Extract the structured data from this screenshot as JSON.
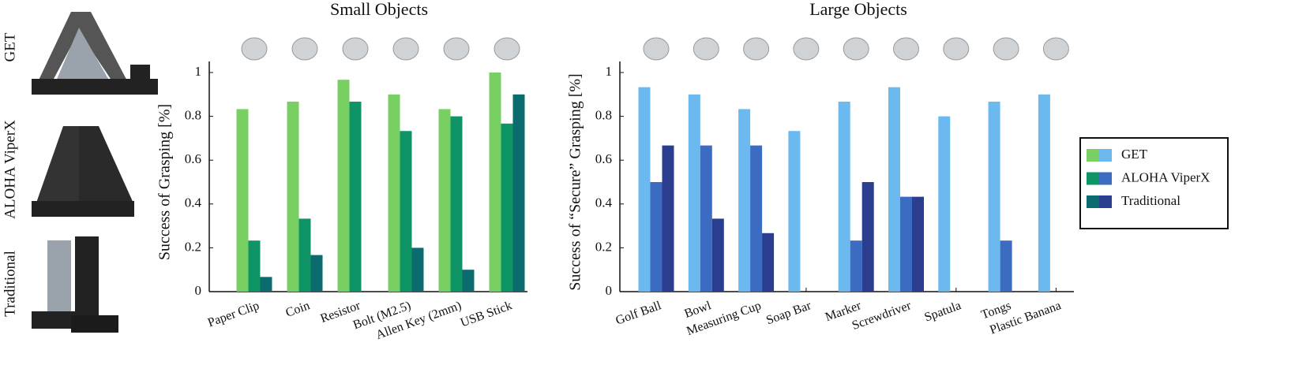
{
  "gripper_labels": [
    "GET",
    "ALOHA ViperX",
    "Traditional"
  ],
  "chart_data": [
    {
      "type": "bar",
      "title": "Small Objects",
      "ylabel": "Success of Grasping [%]",
      "categories": [
        "Paper Clip",
        "Coin",
        "Resistor",
        "Bolt (M2.5)",
        "Allen Key (2mm)",
        "USB Stick"
      ],
      "series": [
        {
          "name": "GET",
          "color": "#79d062",
          "values": [
            0.833,
            0.867,
            0.967,
            0.9,
            0.833,
            1.0
          ]
        },
        {
          "name": "ALOHA ViperX",
          "color": "#0e9465",
          "values": [
            0.233,
            0.333,
            0.867,
            0.733,
            0.8,
            0.767
          ]
        },
        {
          "name": "Traditional",
          "color": "#0b6b6f",
          "values": [
            0.067,
            0.167,
            0,
            0.2,
            0.1,
            0.9
          ]
        }
      ],
      "ylim": [
        0,
        1
      ],
      "yticks": [
        0,
        0.2,
        0.4,
        0.6,
        0.8,
        1
      ]
    },
    {
      "type": "bar",
      "title": "Large Objects",
      "ylabel": "Success of “Secure” Grasping [%]",
      "categories": [
        "Golf Ball",
        "Bowl",
        "Measuring Cup",
        "Soap Bar",
        "Marker",
        "Screwdriver",
        "Spatula",
        "Tongs",
        "Plastic Banana"
      ],
      "series": [
        {
          "name": "GET",
          "color": "#6cb9ef",
          "values": [
            0.933,
            0.9,
            0.833,
            0.733,
            0.867,
            0.933,
            0.8,
            0.867,
            0.9
          ]
        },
        {
          "name": "ALOHA ViperX",
          "color": "#3b6cc2",
          "values": [
            0.5,
            0.667,
            0.667,
            0,
            0.233,
            0.433,
            0,
            0.233,
            0
          ]
        },
        {
          "name": "Traditional",
          "color": "#2b3d8e",
          "values": [
            0.667,
            0.333,
            0.267,
            0,
            0.5,
            0.433,
            0,
            0,
            0
          ]
        }
      ],
      "ylim": [
        0,
        1
      ],
      "yticks": [
        0,
        0.2,
        0.4,
        0.6,
        0.8,
        1
      ]
    }
  ]
}
